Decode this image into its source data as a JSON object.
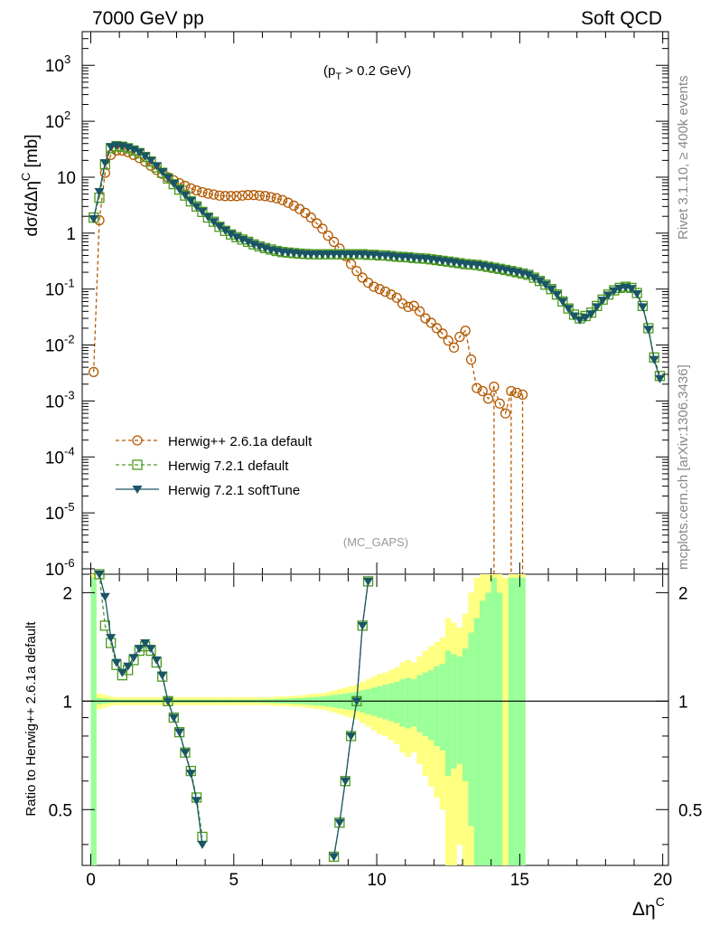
{
  "header": {
    "left": "7000 GeV pp",
    "right": "Soft QCD"
  },
  "side_labels": {
    "rivet": "Rivet 3.1.10, ≥ 400k events",
    "mcplots": "mcplots.cern.ch [arXiv:1306.3436]"
  },
  "annotations": {
    "cut": "(p_T > 0.2 GeV)",
    "analysis": "(MC_GAPS)"
  },
  "colors": {
    "herwigpp": "#b35900",
    "herwig_default": "#4a9a1c",
    "herwig_soft": "#1a5566",
    "band_outer": "#ffff80",
    "band_inner": "#99ff99"
  },
  "chart_data": [
    {
      "type": "line",
      "ylabel": "dσ/dΔη^C [mb]",
      "xlim": [
        -0.3,
        20.2
      ],
      "ylim": [
        8e-07,
        4000
      ],
      "yscale": "log",
      "x_ticks": [
        "0",
        "5",
        "10",
        "15",
        "20"
      ],
      "y_ticks": [
        "10^-6",
        "10^-5",
        "10^-4",
        "10^-3",
        "10^-2",
        "10^-1",
        "1",
        "10",
        "10^2",
        "10^3"
      ],
      "series": [
        {
          "name": "Herwig++ 2.6.1a default",
          "marker": "open-circle",
          "linestyle": "dashed",
          "x": [
            0.1,
            0.3,
            0.5,
            0.7,
            0.9,
            1.1,
            1.3,
            1.5,
            1.7,
            1.9,
            2.1,
            2.3,
            2.5,
            2.7,
            2.9,
            3.1,
            3.3,
            3.5,
            3.7,
            3.9,
            4.1,
            4.3,
            4.5,
            4.7,
            4.9,
            5.1,
            5.3,
            5.5,
            5.7,
            5.9,
            6.1,
            6.3,
            6.5,
            6.7,
            6.9,
            7.1,
            7.3,
            7.5,
            7.7,
            7.9,
            8.1,
            8.3,
            8.5,
            8.7,
            8.9,
            9.1,
            9.3,
            9.5,
            9.7,
            9.9,
            10.1,
            10.3,
            10.5,
            10.7,
            10.9,
            11.1,
            11.3,
            11.5,
            11.7,
            11.9,
            12.1,
            12.3,
            12.5,
            12.7,
            12.9,
            13.1,
            13.3,
            13.5,
            13.7,
            13.9,
            14.1,
            14.3,
            14.5,
            14.7,
            14.9,
            15.1
          ],
          "y": [
            0.0033,
            1.7,
            12,
            25,
            30,
            30,
            28,
            25,
            22,
            19,
            16,
            13.5,
            11.5,
            10,
            8.8,
            7.8,
            7,
            6.3,
            5.8,
            5.4,
            5.1,
            4.9,
            4.7,
            4.6,
            4.6,
            4.6,
            4.7,
            4.8,
            4.8,
            4.7,
            4.6,
            4.4,
            4.2,
            3.9,
            3.5,
            3.1,
            2.7,
            2.3,
            1.9,
            1.5,
            1.2,
            0.9,
            0.7,
            0.53,
            0.39,
            0.28,
            0.21,
            0.16,
            0.13,
            0.11,
            0.1,
            0.09,
            0.08,
            0.07,
            0.055,
            0.048,
            0.05,
            0.04,
            0.03,
            0.025,
            0.02,
            0.016,
            0.012,
            0.009,
            0.014,
            0.018,
            0.0055,
            0.0017,
            0.0015,
            0.0011,
            0.0018,
            0.0009,
            0.0006,
            0.0015,
            0.0014,
            0.0013
          ]
        },
        {
          "name": "Herwig 7.2.1 default",
          "marker": "open-square",
          "linestyle": "dashed",
          "x": [
            0.1,
            0.3,
            0.5,
            0.7,
            0.9,
            1.1,
            1.3,
            1.5,
            1.7,
            1.9,
            2.1,
            2.3,
            2.5,
            2.7,
            2.9,
            3.1,
            3.3,
            3.5,
            3.7,
            3.9,
            4.1,
            4.3,
            4.5,
            4.7,
            4.9,
            5.1,
            5.3,
            5.5,
            5.7,
            5.9,
            6.1,
            6.3,
            6.5,
            6.7,
            6.9,
            7.1,
            7.3,
            7.5,
            7.7,
            7.9,
            8.1,
            8.3,
            8.5,
            8.7,
            8.9,
            9.1,
            9.3,
            9.5,
            9.7,
            9.9,
            10.1,
            10.3,
            10.5,
            10.7,
            10.9,
            11.1,
            11.3,
            11.5,
            11.7,
            11.9,
            12.1,
            12.3,
            12.5,
            12.7,
            12.9,
            13.1,
            13.3,
            13.5,
            13.7,
            13.9,
            14.1,
            14.3,
            14.5,
            14.7,
            14.9,
            15.1,
            15.3,
            15.5,
            15.7,
            15.9,
            16.1,
            16.3,
            16.5,
            16.7,
            16.9,
            17.1,
            17.3,
            17.5,
            17.7,
            17.9,
            18.1,
            18.3,
            18.5,
            18.7,
            18.9,
            19.1,
            19.3,
            19.5,
            19.7,
            19.9
          ],
          "y": [
            1.9,
            4.3,
            17,
            33,
            36,
            35,
            33,
            30,
            27,
            23,
            19,
            15,
            12,
            9.5,
            7.5,
            6,
            4.7,
            3.7,
            3,
            2.4,
            1.9,
            1.6,
            1.3,
            1.1,
            0.95,
            0.85,
            0.77,
            0.7,
            0.63,
            0.58,
            0.54,
            0.51,
            0.48,
            0.46,
            0.45,
            0.44,
            0.43,
            0.425,
            0.42,
            0.42,
            0.42,
            0.42,
            0.42,
            0.42,
            0.42,
            0.42,
            0.42,
            0.42,
            0.41,
            0.41,
            0.4,
            0.4,
            0.39,
            0.38,
            0.375,
            0.37,
            0.36,
            0.355,
            0.35,
            0.34,
            0.33,
            0.32,
            0.31,
            0.3,
            0.29,
            0.28,
            0.275,
            0.27,
            0.26,
            0.25,
            0.24,
            0.23,
            0.22,
            0.21,
            0.2,
            0.19,
            0.18,
            0.16,
            0.14,
            0.12,
            0.1,
            0.08,
            0.06,
            0.045,
            0.035,
            0.03,
            0.033,
            0.038,
            0.05,
            0.065,
            0.08,
            0.095,
            0.105,
            0.11,
            0.105,
            0.085,
            0.05,
            0.02,
            0.006,
            0.0028
          ]
        },
        {
          "name": "Herwig 7.2.1 softTune",
          "marker": "filled-triangle-down",
          "linestyle": "solid",
          "x": [
            0.1,
            0.3,
            0.5,
            0.7,
            0.9,
            1.1,
            1.3,
            1.5,
            1.7,
            1.9,
            2.1,
            2.3,
            2.5,
            2.7,
            2.9,
            3.1,
            3.3,
            3.5,
            3.7,
            3.9,
            4.1,
            4.3,
            4.5,
            4.7,
            4.9,
            5.1,
            5.3,
            5.5,
            5.7,
            5.9,
            6.1,
            6.3,
            6.5,
            6.7,
            6.9,
            7.1,
            7.3,
            7.5,
            7.7,
            7.9,
            8.1,
            8.3,
            8.5,
            8.7,
            8.9,
            9.1,
            9.3,
            9.5,
            9.7,
            9.9,
            10.1,
            10.3,
            10.5,
            10.7,
            10.9,
            11.1,
            11.3,
            11.5,
            11.7,
            11.9,
            12.1,
            12.3,
            12.5,
            12.7,
            12.9,
            13.1,
            13.3,
            13.5,
            13.7,
            13.9,
            14.1,
            14.3,
            14.5,
            14.7,
            14.9,
            15.1,
            15.3,
            15.5,
            15.7,
            15.9,
            16.1,
            16.3,
            16.5,
            16.7,
            16.9,
            17.1,
            17.3,
            17.5,
            17.7,
            17.9,
            18.1,
            18.3,
            18.5,
            18.7,
            18.9,
            19.1,
            19.3,
            19.5,
            19.7,
            19.9
          ],
          "y": [
            1.8,
            5.5,
            18,
            35,
            37,
            36,
            34,
            31,
            28,
            24,
            20,
            16,
            12.5,
            9.8,
            7.7,
            6.1,
            4.8,
            3.8,
            3,
            2.45,
            1.95,
            1.6,
            1.32,
            1.12,
            0.96,
            0.85,
            0.77,
            0.7,
            0.63,
            0.58,
            0.54,
            0.5,
            0.48,
            0.46,
            0.45,
            0.44,
            0.43,
            0.425,
            0.42,
            0.42,
            0.42,
            0.42,
            0.42,
            0.42,
            0.42,
            0.42,
            0.42,
            0.42,
            0.41,
            0.41,
            0.4,
            0.4,
            0.39,
            0.38,
            0.375,
            0.37,
            0.36,
            0.355,
            0.35,
            0.34,
            0.33,
            0.32,
            0.31,
            0.3,
            0.29,
            0.28,
            0.275,
            0.27,
            0.26,
            0.25,
            0.24,
            0.23,
            0.22,
            0.21,
            0.2,
            0.19,
            0.18,
            0.16,
            0.14,
            0.12,
            0.1,
            0.08,
            0.06,
            0.045,
            0.033,
            0.028,
            0.031,
            0.036,
            0.048,
            0.063,
            0.078,
            0.093,
            0.103,
            0.108,
            0.102,
            0.082,
            0.048,
            0.019,
            0.0055,
            0.0025
          ]
        }
      ]
    },
    {
      "type": "line",
      "xlabel": "Δη^C",
      "ylabel": "Ratio to Herwig++ 2.6.1a default",
      "xlim": [
        -0.3,
        20.2
      ],
      "ylim": [
        0.35,
        2.25
      ],
      "y_ticks": [
        "0.5",
        "1",
        "2"
      ],
      "reference_line": 1,
      "series": [
        {
          "name": "Herwig 7.2.1 default",
          "segments": [
            {
              "x": [
                0.3,
                0.5,
                0.7,
                0.9,
                1.1,
                1.3,
                1.5,
                1.7,
                1.9,
                2.1,
                2.3,
                2.5,
                2.7,
                2.9,
                3.1,
                3.3,
                3.5,
                3.7,
                3.9
              ],
              "y": [
                2.25,
                1.62,
                1.45,
                1.26,
                1.18,
                1.22,
                1.3,
                1.38,
                1.42,
                1.38,
                1.28,
                1.17,
                1.0,
                0.9,
                0.82,
                0.72,
                0.64,
                0.54,
                0.42
              ]
            },
            {
              "x": [
                8.5,
                8.7,
                8.9,
                9.1,
                9.3,
                9.5,
                9.7
              ],
              "y": [
                0.37,
                0.46,
                0.6,
                0.8,
                1.0,
                1.62,
                2.15
              ]
            }
          ]
        },
        {
          "name": "Herwig 7.2.1 softTune",
          "segments": [
            {
              "x": [
                0.3,
                0.5,
                0.7,
                0.9,
                1.1,
                1.3,
                1.5,
                1.7,
                1.9,
                2.1,
                2.3,
                2.5,
                2.7,
                2.9,
                3.1,
                3.3,
                3.5,
                3.7,
                3.9
              ],
              "y": [
                2.25,
                1.95,
                1.5,
                1.28,
                1.2,
                1.25,
                1.32,
                1.4,
                1.45,
                1.4,
                1.3,
                1.18,
                1.0,
                0.9,
                0.82,
                0.72,
                0.63,
                0.53,
                0.4
              ]
            },
            {
              "x": [
                8.5,
                8.7,
                8.9,
                9.1,
                9.3,
                9.5,
                9.7
              ],
              "y": [
                0.37,
                0.46,
                0.6,
                0.8,
                1.0,
                1.62,
                2.15
              ]
            }
          ]
        }
      ],
      "bands": {
        "x": [
          0.1,
          0.3,
          0.5,
          0.7,
          0.9,
          1.1,
          1.3,
          1.5,
          1.7,
          1.9,
          2.1,
          2.3,
          2.5,
          2.7,
          2.9,
          3.1,
          3.3,
          3.5,
          3.7,
          3.9,
          4.1,
          4.3,
          4.5,
          4.7,
          4.9,
          5.1,
          5.3,
          5.5,
          5.7,
          5.9,
          6.1,
          6.3,
          6.5,
          6.7,
          6.9,
          7.1,
          7.3,
          7.5,
          7.7,
          7.9,
          8.1,
          8.3,
          8.5,
          8.7,
          8.9,
          9.1,
          9.3,
          9.5,
          9.7,
          9.9,
          10.1,
          10.3,
          10.5,
          10.7,
          10.9,
          11.1,
          11.3,
          11.5,
          11.7,
          11.9,
          12.1,
          12.3,
          12.5,
          12.7,
          12.9,
          13.1,
          13.3,
          13.5,
          13.7,
          13.9,
          14.1,
          14.3,
          14.5,
          14.7,
          14.9,
          15.1
        ],
        "outer_half_width": [
          1.5,
          0.05,
          0.04,
          0.03,
          0.025,
          0.025,
          0.025,
          0.025,
          0.025,
          0.025,
          0.025,
          0.025,
          0.025,
          0.025,
          0.025,
          0.025,
          0.025,
          0.025,
          0.025,
          0.025,
          0.025,
          0.025,
          0.025,
          0.025,
          0.025,
          0.025,
          0.025,
          0.025,
          0.025,
          0.025,
          0.025,
          0.025,
          0.03,
          0.03,
          0.03,
          0.035,
          0.035,
          0.04,
          0.045,
          0.05,
          0.05,
          0.06,
          0.07,
          0.08,
          0.09,
          0.1,
          0.11,
          0.13,
          0.15,
          0.17,
          0.19,
          0.2,
          0.22,
          0.24,
          0.28,
          0.3,
          0.28,
          0.33,
          0.38,
          0.42,
          0.46,
          0.5,
          0.7,
          0.65,
          0.6,
          0.75,
          1.0,
          1.2,
          1.5,
          1.5,
          1.5,
          1.5,
          1.2,
          1.5,
          1.5,
          1.5
        ],
        "inner_half_width": [
          1.2,
          0.02,
          0.015,
          0.012,
          0.01,
          0.01,
          0.01,
          0.01,
          0.01,
          0.01,
          0.01,
          0.01,
          0.01,
          0.01,
          0.01,
          0.01,
          0.01,
          0.01,
          0.01,
          0.01,
          0.01,
          0.01,
          0.01,
          0.01,
          0.01,
          0.01,
          0.01,
          0.01,
          0.01,
          0.01,
          0.012,
          0.012,
          0.014,
          0.015,
          0.016,
          0.018,
          0.02,
          0.022,
          0.025,
          0.028,
          0.03,
          0.035,
          0.04,
          0.045,
          0.05,
          0.055,
          0.06,
          0.07,
          0.08,
          0.09,
          0.1,
          0.11,
          0.12,
          0.13,
          0.15,
          0.16,
          0.15,
          0.18,
          0.2,
          0.22,
          0.25,
          0.27,
          0.38,
          0.35,
          0.33,
          0.4,
          0.55,
          0.7,
          0.9,
          1.0,
          1.2,
          1.0,
          0.0,
          1.2,
          1.2,
          1.2
        ]
      }
    }
  ]
}
